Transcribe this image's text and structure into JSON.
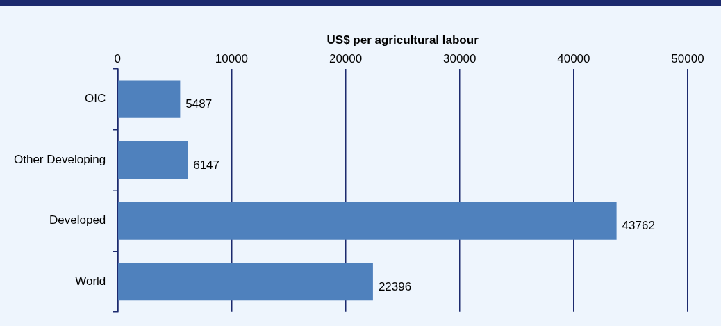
{
  "chart_data": {
    "type": "bar",
    "orientation": "horizontal",
    "xlabel": "US$ per agricultural labour",
    "categories": [
      "OIC",
      "Other Developing",
      "Developed",
      "World"
    ],
    "values": [
      5487,
      6147,
      43762,
      22396
    ],
    "color": "#4f81bd",
    "xlim": [
      0,
      50000
    ],
    "xticks": [
      0,
      10000,
      20000,
      30000,
      40000,
      50000
    ],
    "grid": "x",
    "data_labels": true,
    "legend": false
  }
}
